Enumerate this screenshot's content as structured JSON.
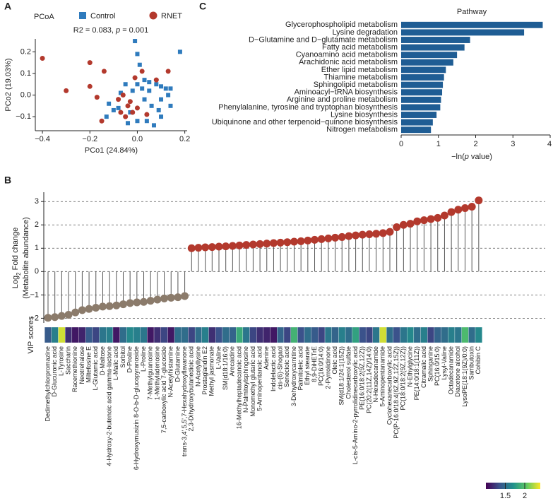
{
  "chart_data": [
    {
      "type": "scatter",
      "panel": "A",
      "title": "PCoA",
      "subtitle": [
        "R2 = 0.083, ",
        "p",
        " = 0.001"
      ],
      "x_label": "PCo1 (24.84%)",
      "y_label": "PCo2 (19.03%)",
      "xlim": [
        -0.43,
        0.21
      ],
      "ylim": [
        -0.165,
        0.26
      ],
      "xticks": [
        {
          "value": -0.4,
          "label": "−0.4"
        },
        {
          "value": -0.2,
          "label": "−0.2"
        },
        {
          "value": 0,
          "label": "0.0"
        },
        0.2
      ],
      "yticks": [
        {
          "value": -0.1,
          "label": "−0.1"
        },
        {
          "value": 0,
          "label": "0.0"
        },
        0.1,
        0.2
      ],
      "series": [
        {
          "name": "Control",
          "color": "#2f7bbd",
          "marker": "square",
          "x": [
            -0.01,
            0.0,
            0.18,
            0.01,
            0.03,
            0.05,
            0.08,
            0.1,
            0.12,
            0.14,
            0.13,
            0.1,
            0.05,
            0.02,
            0.0,
            -0.02,
            -0.05,
            -0.07,
            -0.1,
            -0.12,
            -0.13,
            -0.08,
            0.06,
            0.09,
            0.1,
            0.04,
            0.0,
            -0.04,
            0.14,
            0.07,
            0.03,
            -0.03
          ],
          "y": [
            0.25,
            0.19,
            0.2,
            0.14,
            0.07,
            0.06,
            0.05,
            0.04,
            0.03,
            0.03,
            0.0,
            -0.02,
            0.02,
            0.03,
            0.05,
            0.02,
            0.05,
            0.01,
            -0.07,
            -0.04,
            -0.1,
            -0.06,
            -0.05,
            -0.07,
            -0.1,
            -0.12,
            -0.12,
            -0.13,
            -0.05,
            -0.14,
            -0.02,
            -0.08
          ]
        },
        {
          "name": "RNET",
          "color": "#b3392d",
          "marker": "circle",
          "x": [
            -0.4,
            -0.3,
            -0.2,
            -0.2,
            -0.17,
            -0.15,
            -0.14,
            -0.08,
            -0.07,
            -0.05,
            -0.04,
            -0.03,
            -0.02,
            0.0,
            0.02,
            0.04,
            0.08,
            0.13,
            -0.01,
            -0.06
          ],
          "y": [
            0.17,
            0.02,
            0.15,
            0.04,
            -0.01,
            -0.12,
            0.11,
            -0.02,
            -0.08,
            -0.1,
            -0.05,
            -0.03,
            -0.08,
            -0.06,
            0.11,
            -0.09,
            0.07,
            0.11,
            0.08,
            0.0
          ]
        }
      ]
    },
    {
      "type": "hbar",
      "panel": "C",
      "title": "Pathway",
      "x_label": [
        "−ln(",
        "p",
        " value)"
      ],
      "color": "#1f5d94",
      "categories": [
        "Glycerophospholipid metabolism",
        "Lysine degradation",
        "D−Glutamine and D−glutamate metabolism",
        "Fatty acid metabolism",
        "Cyanoamino acid metabolism",
        "Arachidonic acid metabolism",
        "Ether lipid metabolism",
        "Thiamine metabolism",
        "Sphingolipid metabolism",
        "Aminoacyl−tRNA biosynthesis",
        "Arginine and proline metabolism",
        "Phenylalanine, tyrosine and tryptophan biosynthesis",
        "Lysine biosynthesis",
        "Ubiquinone and other terpenoid−quinone biosynthesis",
        "Nitrogen metabolism"
      ],
      "values": [
        3.8,
        3.3,
        1.85,
        1.7,
        1.5,
        1.4,
        1.2,
        1.15,
        1.12,
        1.1,
        1.07,
        1.05,
        0.95,
        0.85,
        0.8
      ],
      "xlim": [
        0,
        4
      ],
      "xticks": [
        0,
        1,
        2,
        3,
        4
      ]
    },
    {
      "type": "lollipop",
      "panel": "B",
      "y_label": [
        "Log",
        "2",
        " Fold change",
        "(Metabolite abundance)"
      ],
      "heat_label": "VIP scores",
      "down_color": "#8b7b6b",
      "up_color": "#b3392d",
      "grid": true,
      "colormap": "viridis",
      "ylim": [
        -2.2,
        3.4
      ],
      "yticks": [
        {
          "value": -2,
          "label": "−2"
        },
        {
          "value": -1,
          "label": "−1"
        },
        0,
        1,
        2,
        3
      ],
      "categories": [
        "Dedimethylchlorpromazine",
        "D-Glucuronic acid",
        "L-Tyrosine",
        "Saccharin",
        "Racemethionine",
        "Neotrehalose",
        "Miltefosine E",
        "L-Glutamic acid",
        "D-Maltose",
        "4-Hydroxy-2-butenoic acid gamma-lactone",
        "L-Malic acid",
        "Sorbitol",
        "D-Proline",
        "6-Hydroxymusizin 8-O-b-D-glucopyranoside",
        "L-Proline",
        "7-Methylguanosine",
        "1-Methyladenosine",
        "7,5-carboxylic acid 7-glucoside",
        "N-Acetylhistamine",
        "D-Glutamine",
        "trans-3,4',5,5',7-Hexahydroxyflavanone",
        "2,3-Dihydroxybutanedioic acid",
        "N-Acetyllysine",
        "Prostaglandin E2",
        "Methyl jasmonate",
        "L-Valine",
        "SM(d18:1/16:0)",
        "Arecaidine",
        "16-Methylheptadecanoic acid",
        "N-Palmitoylsphingosine",
        "Monomethyl glutaric acid",
        "5-Aminopentanoic acid",
        "Adenine",
        "Indolelactic acid",
        "cis-(6)-Shogaol",
        "Senecioic acid",
        "3-Dehydroxycarnitine",
        "Palmitoleic acid",
        "Ethyl stearate",
        "8,9-DiHETrE",
        "PC(16:0/14:0)",
        "2-Pyrrolidinone",
        "Oleic acid",
        "SM(d18:1/24:1(15Z))",
        "Cholesterol sulfate",
        "L-cis-5-Amino-2-pyrrolidinecarboxylic acid",
        "PE(16:0/18:2(9Z,12Z))",
        "PC(20:2(11Z,14Z)/14:0)",
        "N-Hexadecanamide",
        "5-Aminopentanamide",
        "Cyclohexanecarboxylic acid",
        "PC(P-16:0/18:4(6Z,9Z,12Z,15Z))",
        "PC(18:0/18:2(9Z,12Z))",
        "N-Ethylglycine",
        "PE(14:0/18:1(11Z))",
        "Citramalic acid",
        "Sphinganine",
        "PC(16:0/15:0)",
        "Lysyl-Valine",
        "Octadecanamide",
        "Diacetone alcohol",
        "LysoPE(18:1(9Z)/0:0)",
        "Sambutoxin",
        "Cohibin C"
      ],
      "values": [
        -1.98,
        -1.95,
        -1.9,
        -1.85,
        -1.75,
        -1.65,
        -1.6,
        -1.55,
        -1.5,
        -1.48,
        -1.45,
        -1.4,
        -1.35,
        -1.32,
        -1.3,
        -1.25,
        -1.2,
        -1.15,
        -1.12,
        -1.1,
        -1.05,
        1.0,
        1.02,
        1.04,
        1.05,
        1.07,
        1.08,
        1.1,
        1.12,
        1.14,
        1.16,
        1.18,
        1.2,
        1.22,
        1.24,
        1.26,
        1.28,
        1.3,
        1.33,
        1.36,
        1.39,
        1.42,
        1.45,
        1.48,
        1.52,
        1.55,
        1.58,
        1.6,
        1.62,
        1.65,
        1.7,
        1.9,
        2.0,
        2.05,
        2.15,
        2.2,
        2.25,
        2.3,
        2.4,
        2.55,
        2.65,
        2.72,
        2.78,
        3.05
      ],
      "vip_scores": [
        1.4,
        1.6,
        2.3,
        1.2,
        1.1,
        1.15,
        1.4,
        1.3,
        1.55,
        1.6,
        1.1,
        1.5,
        1.65,
        1.6,
        1.55,
        1.1,
        1.2,
        1.3,
        1.1,
        1.5,
        1.5,
        1.3,
        1.5,
        1.6,
        1.2,
        1.35,
        1.5,
        1.45,
        1.85,
        1.55,
        1.3,
        1.2,
        1.15,
        1.1,
        1.45,
        1.3,
        1.9,
        1.35,
        1.5,
        1.4,
        1.3,
        1.55,
        1.45,
        1.6,
        1.5,
        1.8,
        1.35,
        1.3,
        1.55,
        2.3,
        1.5,
        1.35,
        1.55,
        1.65,
        1.5,
        1.6,
        1.3,
        1.45,
        1.5,
        1.6,
        1.55,
        1.95,
        1.5,
        1.65
      ],
      "vip_lim": [
        1.0,
        2.4
      ],
      "vip_ticks": [
        1.5,
        2.0
      ]
    }
  ]
}
